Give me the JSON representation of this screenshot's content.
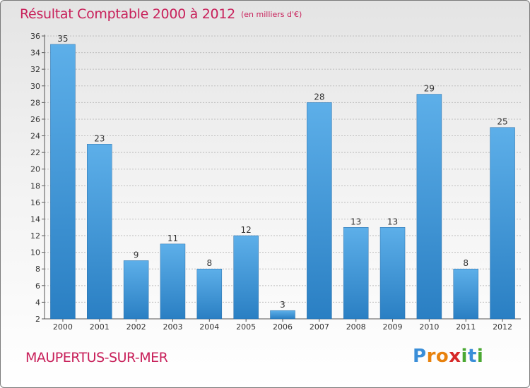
{
  "title": "Résultat Comptable 2000 à 2012",
  "unit_note": "(en milliers d'€)",
  "commune": "MAUPERTUS-SUR-MER",
  "logo": {
    "letters": [
      "P",
      "r",
      "o",
      "x",
      "i",
      "t",
      "i"
    ],
    "colors": [
      "#3a8ed8",
      "#e8820e",
      "#e8820e",
      "#d62828",
      "#4aa832",
      "#3a8ed8",
      "#4aa832"
    ]
  },
  "colors": {
    "title": "#c8205a",
    "bar_light": "#5dafe9",
    "bar_dark": "#2a7fc3",
    "grid": "#bdbdbd"
  },
  "chart_data": {
    "type": "bar",
    "categories": [
      "2000",
      "2001",
      "2002",
      "2003",
      "2004",
      "2005",
      "2006",
      "2007",
      "2008",
      "2009",
      "2010",
      "2011",
      "2012"
    ],
    "values": [
      35,
      23,
      9,
      11,
      8,
      12,
      3,
      28,
      13,
      13,
      29,
      8,
      25
    ],
    "ylim": [
      2,
      36
    ],
    "yticks": [
      2,
      4,
      6,
      8,
      10,
      12,
      14,
      16,
      18,
      20,
      22,
      24,
      26,
      28,
      30,
      32,
      34,
      36
    ],
    "grid": true,
    "legend": "none"
  }
}
